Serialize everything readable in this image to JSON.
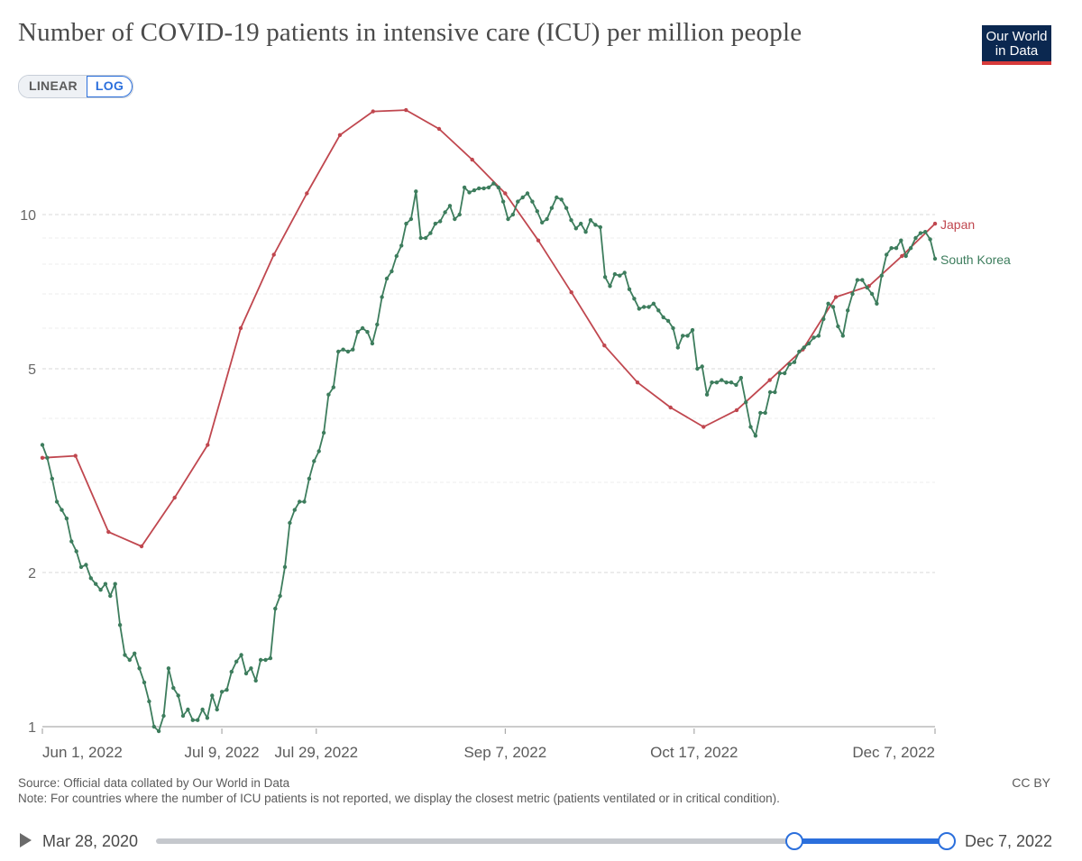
{
  "title": "Number of COVID-19 patients in intensive care (ICU) per million people",
  "logo": {
    "line1": "Our World",
    "line2": "in Data"
  },
  "scale_toggle": {
    "linear": "LINEAR",
    "log": "LOG",
    "active": "LOG"
  },
  "footer": {
    "source": "Source: Official data collated by Our World in Data",
    "note": "Note: For countries where the number of ICU patients is not reported, we display the closest metric (patients ventilated or in critical condition).",
    "license": "CC BY"
  },
  "timeline": {
    "start": "Mar 28, 2020",
    "end": "Dec 7, 2022",
    "play_icon": "play-icon"
  },
  "chart_data": {
    "type": "line",
    "yscale": "log",
    "ylim": [
      1,
      17
    ],
    "yticks": [
      1,
      2,
      5,
      10
    ],
    "x_start_day": 0,
    "x_end_day": 189,
    "xtick_labels": [
      {
        "day": 0,
        "label": "Jun 1, 2022"
      },
      {
        "day": 38,
        "label": "Jul 9, 2022"
      },
      {
        "day": 58,
        "label": "Jul 29, 2022"
      },
      {
        "day": 98,
        "label": "Sep 7, 2022"
      },
      {
        "day": 138,
        "label": "Oct 17, 2022"
      },
      {
        "day": 189,
        "label": "Dec 7, 2022"
      }
    ],
    "series": [
      {
        "name": "Japan",
        "color": "#c0474f",
        "days": [
          0,
          7,
          14,
          21,
          28,
          35,
          42,
          49,
          56,
          63,
          70,
          77,
          84,
          91,
          98,
          105,
          112,
          119,
          126,
          133,
          140,
          147,
          154,
          161,
          168,
          175,
          182,
          189
        ],
        "values": [
          3.35,
          3.38,
          2.4,
          2.25,
          2.8,
          3.55,
          6.0,
          8.35,
          11.0,
          14.3,
          15.9,
          16.0,
          14.7,
          12.8,
          11.0,
          8.9,
          7.05,
          5.55,
          4.7,
          4.2,
          3.85,
          4.15,
          4.75,
          5.45,
          6.9,
          7.25,
          8.3,
          9.6
        ]
      },
      {
        "name": "South Korea",
        "color": "#3d7d5d",
        "values": [
          3.55,
          3.35,
          3.05,
          2.75,
          2.65,
          2.55,
          2.3,
          2.2,
          2.05,
          2.07,
          1.95,
          1.9,
          1.85,
          1.9,
          1.8,
          1.9,
          1.58,
          1.38,
          1.35,
          1.39,
          1.3,
          1.22,
          1.12,
          1.0,
          0.98,
          1.05,
          1.3,
          1.19,
          1.15,
          1.05,
          1.08,
          1.03,
          1.03,
          1.08,
          1.04,
          1.15,
          1.08,
          1.17,
          1.18,
          1.28,
          1.34,
          1.38,
          1.27,
          1.3,
          1.23,
          1.35,
          1.35,
          1.36,
          1.7,
          1.8,
          2.05,
          2.5,
          2.65,
          2.75,
          2.75,
          3.05,
          3.3,
          3.45,
          3.75,
          4.45,
          4.6,
          5.4,
          5.45,
          5.4,
          5.45,
          5.9,
          6.0,
          5.9,
          5.6,
          6.1,
          6.9,
          7.5,
          7.75,
          8.3,
          8.7,
          9.6,
          9.8,
          11.1,
          9.0,
          9.0,
          9.2,
          9.6,
          9.7,
          10.1,
          10.4,
          9.8,
          10.0,
          11.3,
          11.05,
          11.15,
          11.25,
          11.25,
          11.3,
          11.5,
          11.3,
          10.6,
          9.8,
          10.0,
          10.6,
          10.8,
          11.0,
          10.6,
          10.15,
          9.65,
          9.8,
          10.3,
          10.8,
          10.7,
          10.3,
          9.75,
          9.4,
          9.6,
          9.25,
          9.75,
          9.55,
          9.45,
          7.55,
          7.25,
          7.65,
          7.6,
          7.7,
          7.15,
          6.85,
          6.55,
          6.6,
          6.6,
          6.7,
          6.5,
          6.3,
          6.2,
          6.0,
          5.5,
          5.8,
          5.8,
          5.95,
          5.0,
          5.05,
          4.45,
          4.7,
          4.7,
          4.75,
          4.7,
          4.7,
          4.65,
          4.8,
          4.3,
          3.85,
          3.7,
          4.1,
          4.1,
          4.5,
          4.5,
          4.9,
          4.9,
          5.1,
          5.15,
          5.4,
          5.5,
          5.6,
          5.75,
          5.8,
          6.25,
          6.7,
          6.6,
          6.05,
          5.8,
          6.5,
          7.0,
          7.45,
          7.45,
          7.2,
          7.0,
          6.7,
          7.6,
          8.35,
          8.6,
          8.6,
          8.9,
          8.3,
          8.6,
          9.0,
          9.2,
          9.25,
          8.95,
          8.2
        ]
      }
    ],
    "xlabel": "",
    "ylabel": ""
  }
}
